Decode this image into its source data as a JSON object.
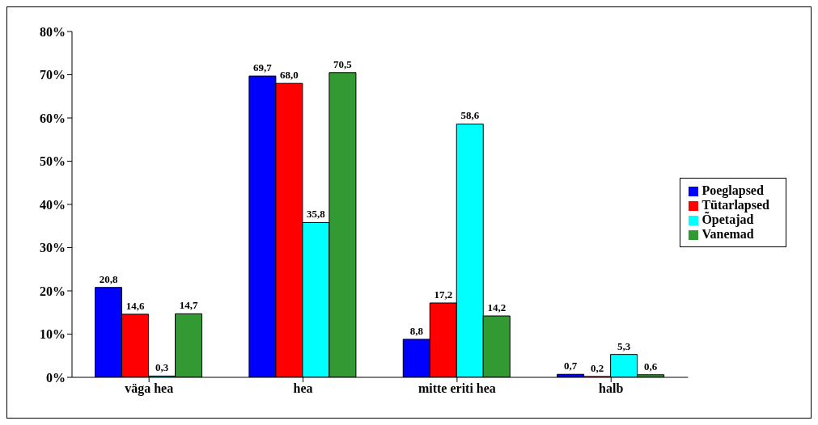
{
  "chart_data": {
    "type": "bar",
    "categories": [
      "väga hea",
      "hea",
      "mitte eriti hea",
      "halb"
    ],
    "series": [
      {
        "name": "Poeglapsed",
        "color": "#0000ff",
        "values": [
          20.8,
          69.7,
          8.8,
          0.7
        ],
        "value_labels": [
          "20,8",
          "69,7",
          "8,8",
          "0,7"
        ]
      },
      {
        "name": "Tütarlapsed",
        "color": "#ff0000",
        "values": [
          14.6,
          68.0,
          17.2,
          0.2
        ],
        "value_labels": [
          "14,6",
          "68,0",
          "17,2",
          "0,2"
        ]
      },
      {
        "name": "Õpetajad",
        "color": "#00ffff",
        "values": [
          0.3,
          35.8,
          58.6,
          5.3
        ],
        "value_labels": [
          "0,3",
          "35,8",
          "58,6",
          "5,3"
        ]
      },
      {
        "name": "Vanemad",
        "color": "#339933",
        "values": [
          14.7,
          70.5,
          14.2,
          0.6
        ],
        "value_labels": [
          "14,7",
          "70,5",
          "14,2",
          "0,6"
        ]
      }
    ],
    "ylim": [
      0,
      80
    ],
    "yticks": [
      {
        "value": 0,
        "label": "0%"
      },
      {
        "value": 10,
        "label": "10%"
      },
      {
        "value": 20,
        "label": "20%"
      },
      {
        "value": 30,
        "label": "30%"
      },
      {
        "value": 40,
        "label": "40%"
      },
      {
        "value": 50,
        "label": "50%"
      },
      {
        "value": 60,
        "label": "60%"
      },
      {
        "value": 70,
        "label": "70%"
      },
      {
        "value": 80,
        "label": "80%"
      }
    ],
    "grid": false,
    "legend": "right"
  }
}
